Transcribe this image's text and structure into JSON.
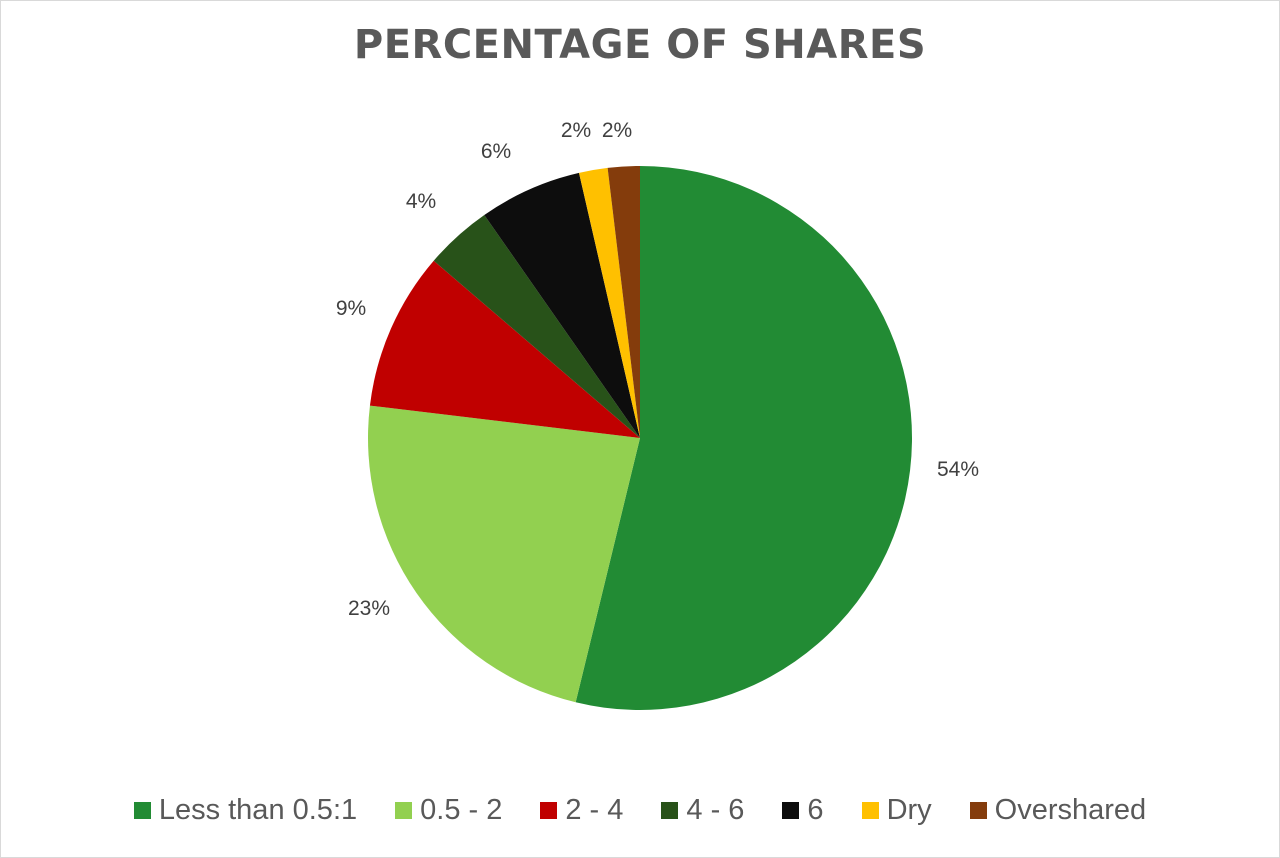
{
  "chart_data": {
    "type": "pie",
    "title": "PERCENTAGE OF SHARES",
    "categories": [
      "Less than 0.5:1",
      "0.5 - 2",
      "2 - 4",
      "4 - 6",
      "6",
      "Dry",
      "Overshared"
    ],
    "values": [
      53.8,
      23.1,
      9.4,
      4.0,
      6.1,
      1.7,
      1.9
    ],
    "data_labels": [
      "54%",
      "23%",
      "9%",
      "4%",
      "6%",
      "2%",
      "2%"
    ],
    "colors": [
      "#228B34",
      "#92D050",
      "#C00000",
      "#285219",
      "#0D0D0D",
      "#FFC000",
      "#843C0C"
    ],
    "start_angle": "12 o'clock, clockwise",
    "legend_position": "bottom"
  },
  "legend": {
    "items": [
      {
        "label": "Less than 0.5:1",
        "color": "#228B34"
      },
      {
        "label": "0.5 - 2",
        "color": "#92D050"
      },
      {
        "label": "2 - 4",
        "color": "#C00000"
      },
      {
        "label": "4 - 6",
        "color": "#285219"
      },
      {
        "label": "6",
        "color": "#0D0D0D"
      },
      {
        "label": "Dry",
        "color": "#FFC000"
      },
      {
        "label": "Overshared",
        "color": "#843C0C"
      }
    ]
  }
}
